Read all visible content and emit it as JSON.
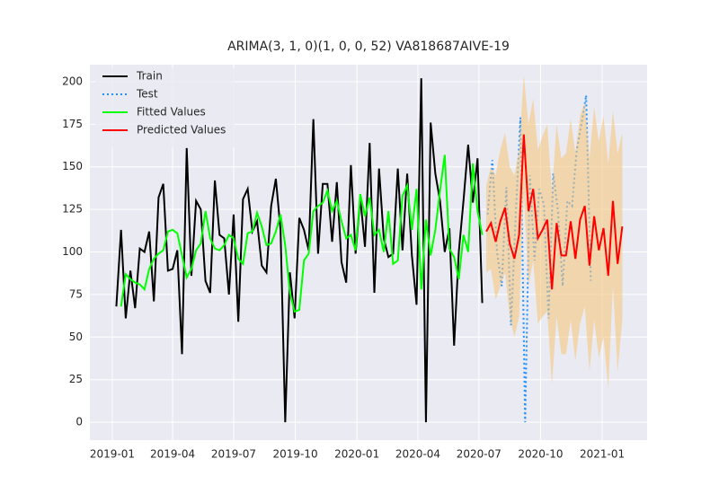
{
  "chart_data": {
    "type": "line",
    "title": "ARIMA(3, 1, 0)(1, 0, 0, 52) VA818687AIVE-19",
    "xlim": [
      -33.5,
      798
    ],
    "xticks": [
      {
        "value": 0,
        "label": "2019-01"
      },
      {
        "value": 90,
        "label": "2019-04"
      },
      {
        "value": 181,
        "label": "2019-07"
      },
      {
        "value": 273,
        "label": "2019-10"
      },
      {
        "value": 365,
        "label": "2020-01"
      },
      {
        "value": 456,
        "label": "2020-04"
      },
      {
        "value": 547,
        "label": "2020-07"
      },
      {
        "value": 639,
        "label": "2020-10"
      },
      {
        "value": 731,
        "label": "2021-01"
      }
    ],
    "ylim": [
      -10.5,
      210
    ],
    "yticks": [
      0,
      25,
      50,
      75,
      100,
      125,
      150,
      175,
      200
    ],
    "grid": true,
    "legend": "upper left",
    "series": [
      {
        "name": "Train",
        "color": "#000000",
        "style": "solid",
        "x": [
          6,
          13,
          20,
          27,
          34,
          41,
          48,
          55,
          62,
          69,
          76,
          83,
          90,
          97,
          104,
          111,
          118,
          125,
          132,
          139,
          146,
          153,
          160,
          167,
          174,
          181,
          188,
          195,
          202,
          209,
          216,
          223,
          230,
          237,
          244,
          251,
          258,
          265,
          272,
          279,
          286,
          293,
          300,
          307,
          314,
          321,
          328,
          335,
          342,
          349,
          356,
          363,
          370,
          377,
          384,
          391,
          398,
          405,
          412,
          419,
          426,
          433,
          440,
          447,
          454,
          461,
          468,
          475,
          482,
          489,
          496,
          503,
          510,
          517,
          524,
          531,
          538,
          545,
          552
        ],
        "values": [
          68,
          113,
          61,
          89,
          67,
          102,
          100,
          112,
          71,
          132,
          140,
          89,
          90,
          101,
          40,
          161,
          86,
          130,
          125,
          83,
          76,
          142,
          110,
          108,
          75,
          122,
          59,
          131,
          137,
          112,
          118,
          92,
          88,
          127,
          143,
          113,
          0,
          88,
          61,
          120,
          113,
          101,
          178,
          99,
          140,
          140,
          106,
          141,
          94,
          82,
          151,
          99,
          132,
          103,
          164,
          76,
          149,
          108,
          97,
          99,
          149,
          101,
          146,
          98,
          69,
          202,
          0,
          176,
          146,
          130,
          100,
          114,
          45,
          100,
          130,
          163,
          129,
          155,
          70
        ]
      },
      {
        "name": "Test",
        "color": "#1e90ff",
        "style": "dotted",
        "x": [
          560,
          567,
          574,
          581,
          588,
          595,
          602,
          609,
          616,
          623,
          630,
          637,
          644,
          651,
          658,
          665,
          672,
          679,
          686,
          693,
          700,
          707,
          714
        ],
        "values": [
          122,
          154,
          100,
          80,
          138,
          57,
          122,
          179,
          0,
          145,
          95,
          137,
          128,
          61,
          146,
          124,
          80,
          130,
          127,
          160,
          175,
          192,
          83
        ]
      },
      {
        "name": "Fitted Values",
        "color": "#00ff00",
        "style": "solid",
        "x": [
          13,
          20,
          27,
          34,
          41,
          48,
          55,
          62,
          69,
          76,
          83,
          90,
          97,
          104,
          111,
          118,
          125,
          132,
          139,
          146,
          153,
          160,
          167,
          174,
          181,
          188,
          195,
          202,
          209,
          216,
          223,
          230,
          237,
          244,
          251,
          258,
          265,
          272,
          279,
          286,
          293,
          300,
          307,
          314,
          321,
          328,
          335,
          342,
          349,
          356,
          363,
          370,
          377,
          384,
          391,
          398,
          405,
          412,
          419,
          426,
          433,
          440,
          447,
          454,
          461,
          468,
          475,
          482,
          489,
          496,
          503,
          510,
          517,
          524,
          531,
          538,
          545,
          552
        ],
        "values": [
          68,
          87,
          84,
          82,
          81,
          78,
          90,
          96,
          99,
          101,
          112,
          113,
          111,
          98,
          85,
          90,
          101,
          105,
          124,
          108,
          102,
          101,
          104,
          110,
          108,
          96,
          93,
          111,
          112,
          123,
          115,
          104,
          105,
          112,
          122,
          104,
          76,
          65,
          66,
          95,
          99,
          124,
          127,
          129,
          136,
          124,
          130,
          118,
          108,
          110,
          101,
          134,
          121,
          132,
          110,
          113,
          100,
          124,
          93,
          95,
          133,
          139,
          113,
          137,
          78,
          119,
          98,
          113,
          136,
          157,
          102,
          97,
          84,
          110,
          100,
          152,
          124,
          110
        ]
      },
      {
        "name": "Predicted Values",
        "color": "#ff0000",
        "style": "solid",
        "x": [
          558,
          565,
          572,
          579,
          586,
          593,
          600,
          607,
          614,
          621,
          628,
          635,
          642,
          649,
          656,
          663,
          670,
          677,
          684,
          691,
          698,
          705,
          712,
          719,
          726,
          733,
          740,
          747,
          754,
          761
        ],
        "values": [
          112,
          117,
          106,
          118,
          126,
          105,
          96,
          110,
          169,
          124,
          137,
          108,
          113,
          119,
          78,
          117,
          98,
          98,
          118,
          96,
          119,
          127,
          92,
          121,
          101,
          114,
          86,
          130,
          93,
          115
        ],
        "band": {
          "color": "#f5c77e",
          "lower": [
            88,
            90,
            72,
            80,
            88,
            62,
            50,
            62,
            135,
            80,
            95,
            58,
            62,
            65,
            22,
            62,
            40,
            40,
            60,
            36,
            58,
            68,
            30,
            60,
            38,
            50,
            20,
            80,
            30,
            60
          ],
          "upper": [
            139,
            150,
            145,
            160,
            170,
            150,
            145,
            160,
            204,
            175,
            190,
            160,
            168,
            175,
            135,
            175,
            155,
            158,
            178,
            158,
            180,
            188,
            155,
            185,
            165,
            180,
            152,
            183,
            158,
            170
          ]
        }
      }
    ]
  }
}
